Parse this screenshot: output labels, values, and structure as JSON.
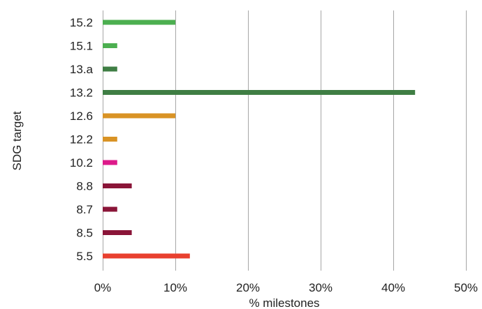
{
  "chart_data": {
    "type": "bar",
    "orientation": "horizontal",
    "xlabel": "% milestones",
    "ylabel": "SDG target",
    "xlim": [
      0,
      50
    ],
    "x_ticks": [
      "0%",
      "10%",
      "20%",
      "30%",
      "40%",
      "50%"
    ],
    "x_tick_values": [
      0,
      10,
      20,
      30,
      40,
      50
    ],
    "grid": "vertical",
    "legend": "none",
    "categories": [
      "15.2",
      "15.1",
      "13.a",
      "13.2",
      "12.6",
      "12.2",
      "10.2",
      "8.8",
      "8.7",
      "8.5",
      "5.5"
    ],
    "values": [
      10,
      2,
      2,
      43,
      10,
      2,
      2,
      4,
      2,
      4,
      12
    ],
    "colors": [
      "#4caf50",
      "#4caf50",
      "#3f7e44",
      "#3f7e44",
      "#d99325",
      "#d99325",
      "#dd1a8a",
      "#8a1538",
      "#8a1538",
      "#8a1538",
      "#e8402f"
    ]
  }
}
